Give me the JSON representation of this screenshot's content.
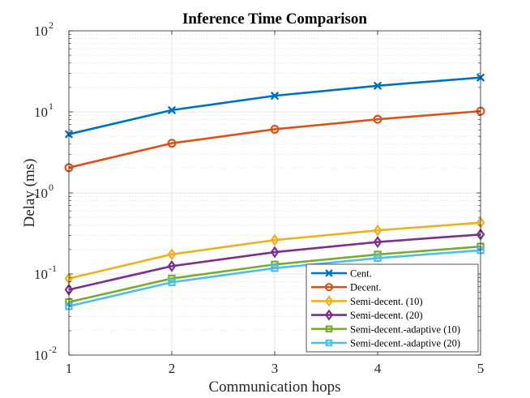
{
  "chart_data": {
    "type": "line",
    "title": "Inference Time Comparison",
    "xlabel": "Communication hops",
    "ylabel": "Delay (ms)",
    "yscale": "log",
    "xlim": [
      1,
      5
    ],
    "ylim": [
      0.01,
      100
    ],
    "grid": true,
    "legend_position": "bottom-right",
    "x": [
      1,
      2,
      3,
      4,
      5
    ],
    "x_tick_labels": [
      "1",
      "2",
      "3",
      "4",
      "5"
    ],
    "y_tick_labels": [
      {
        "value": 0.01,
        "base": "10",
        "exp": "-2"
      },
      {
        "value": 0.1,
        "base": "10",
        "exp": "-1"
      },
      {
        "value": 1,
        "base": "10",
        "exp": "0"
      },
      {
        "value": 10,
        "base": "10",
        "exp": "1"
      },
      {
        "value": 100,
        "base": "10",
        "exp": "2"
      }
    ],
    "series": [
      {
        "name": "Cent.",
        "color": "#0072BD",
        "marker": "x",
        "values": [
          5.3,
          10.5,
          15.8,
          21,
          26.5
        ]
      },
      {
        "name": "Decent.",
        "color": "#D95319",
        "marker": "o",
        "values": [
          2.05,
          4.1,
          6.1,
          8.1,
          10.2
        ]
      },
      {
        "name": "Semi-decent. (10)",
        "color": "#EDB120",
        "marker": "d",
        "values": [
          0.088,
          0.175,
          0.262,
          0.345,
          0.43
        ]
      },
      {
        "name": "Semi-decent. (20)",
        "color": "#7E2F8E",
        "marker": "d",
        "values": [
          0.064,
          0.125,
          0.186,
          0.248,
          0.307
        ]
      },
      {
        "name": "Semi-decent.-adaptive (10)",
        "color": "#77AC30",
        "marker": "s",
        "values": [
          0.045,
          0.088,
          0.131,
          0.174,
          0.218
        ]
      },
      {
        "name": "Semi-decent.-adaptive (20)",
        "color": "#4DBEEE",
        "marker": "s",
        "values": [
          0.04,
          0.079,
          0.118,
          0.157,
          0.196
        ]
      }
    ]
  }
}
